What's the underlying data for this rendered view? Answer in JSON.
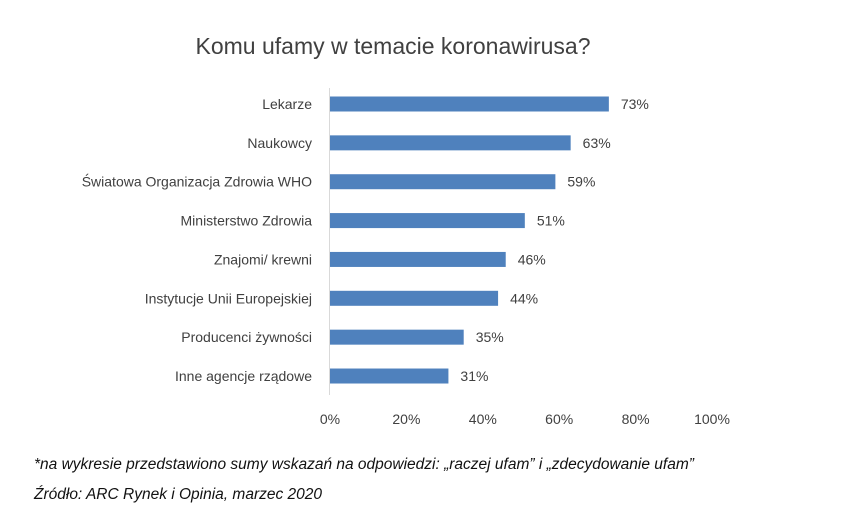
{
  "chart_data": {
    "type": "bar",
    "orientation": "horizontal",
    "title": "Komu ufamy w temacie koronawirusa?",
    "categories": [
      "Lekarze",
      "Naukowcy",
      "Światowa Organizacja Zdrowia WHO",
      "Ministerstwo Zdrowia",
      "Znajomi/ krewni",
      "Instytucje Unii Europejskiej",
      "Producenci żywności",
      "Inne agencje rządowe"
    ],
    "values": [
      73,
      63,
      59,
      51,
      46,
      44,
      35,
      31
    ],
    "value_labels": [
      "73%",
      "63%",
      "59%",
      "51%",
      "46%",
      "44%",
      "35%",
      "31%"
    ],
    "xlim": [
      0,
      100
    ],
    "x_ticks": [
      0,
      20,
      40,
      60,
      80,
      100
    ],
    "x_tick_labels": [
      "0%",
      "20%",
      "40%",
      "60%",
      "80%",
      "100%"
    ],
    "grid": false,
    "bar_color": "#4F81BD"
  },
  "footnote": "*na wykresie przedstawiono sumy wskazań na odpowiedzi: „raczej ufam” i „zdecydowanie ufam”",
  "source": "Źródło: ARC Rynek i Opinia, marzec 2020"
}
